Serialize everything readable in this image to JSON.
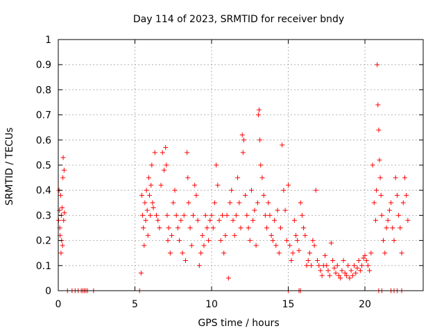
{
  "chart_data": {
    "type": "scatter",
    "title": "Day 114 of 2023, SRMTID for receiver bndy",
    "xlabel": "GPS time / hours",
    "ylabel": "SRMTID / TECUs",
    "xlim": [
      0,
      23.8
    ],
    "ylim": [
      0,
      1
    ],
    "grid": true,
    "marker": "+",
    "color": "#ff0000",
    "x_ticks": [
      0,
      5,
      10,
      15,
      20
    ],
    "x_tick_labels": [
      "0",
      "5",
      "10",
      "15",
      "20"
    ],
    "y_ticks": [
      0,
      0.1,
      0.2,
      0.3,
      0.4,
      0.5,
      0.6,
      0.7,
      0.8,
      0.9,
      1
    ],
    "y_tick_labels": [
      "0",
      "0.1",
      "0.2",
      "0.3",
      "0.4",
      "0.5",
      "0.6",
      "0.7",
      "0.8",
      "0.9",
      "1"
    ],
    "series": [
      {
        "name": "SRMTID",
        "x": [
          0.02,
          0.05,
          0.08,
          0.1,
          0.12,
          0.15,
          0.18,
          0.2,
          0.22,
          0.25,
          0.28,
          0.3,
          0.32,
          0.35,
          0.38,
          0.4,
          0.6,
          0.9,
          1.1,
          1.3,
          1.5,
          1.6,
          1.7,
          1.8,
          1.9,
          2.3,
          5.3,
          5.4,
          5.45,
          5.5,
          5.55,
          5.6,
          5.65,
          5.7,
          5.75,
          5.8,
          5.85,
          5.9,
          5.95,
          6.0,
          6.05,
          6.1,
          6.15,
          6.2,
          6.3,
          6.4,
          6.5,
          6.6,
          6.7,
          6.8,
          6.9,
          7.0,
          7.05,
          7.1,
          7.15,
          7.2,
          7.3,
          7.4,
          7.5,
          7.6,
          7.7,
          7.8,
          7.9,
          8.0,
          8.1,
          8.2,
          8.3,
          8.4,
          8.45,
          8.5,
          8.6,
          8.7,
          8.8,
          8.9,
          9.0,
          9.1,
          9.2,
          9.3,
          9.4,
          9.5,
          9.6,
          9.7,
          9.8,
          9.9,
          10.0,
          10.1,
          10.2,
          10.3,
          10.4,
          10.5,
          10.6,
          10.7,
          10.8,
          10.9,
          11.0,
          11.1,
          11.2,
          11.3,
          11.4,
          11.5,
          11.6,
          11.7,
          11.8,
          11.9,
          12.0,
          12.05,
          12.1,
          12.2,
          12.3,
          12.4,
          12.5,
          12.6,
          12.7,
          12.8,
          12.9,
          13.0,
          13.05,
          13.1,
          13.15,
          13.2,
          13.3,
          13.4,
          13.5,
          13.6,
          13.7,
          13.8,
          13.9,
          14.0,
          14.1,
          14.2,
          14.3,
          14.4,
          14.5,
          14.6,
          14.7,
          14.8,
          14.9,
          15.0,
          15.1,
          15.2,
          15.3,
          15.4,
          15.5,
          15.6,
          15.7,
          15.8,
          15.9,
          16.0,
          16.1,
          16.2,
          16.3,
          16.4,
          16.5,
          16.6,
          16.7,
          16.8,
          16.9,
          17.0,
          17.1,
          17.2,
          17.3,
          17.4,
          17.5,
          17.6,
          17.7,
          17.8,
          17.9,
          18.0,
          18.1,
          18.2,
          18.3,
          18.4,
          18.5,
          18.6,
          18.7,
          18.8,
          18.9,
          19.0,
          19.1,
          19.2,
          19.3,
          19.4,
          19.5,
          19.6,
          19.7,
          19.8,
          19.9,
          20.0,
          20.1,
          20.2,
          20.3,
          20.4,
          20.5,
          20.6,
          20.7,
          20.75,
          20.8,
          20.85,
          20.9,
          20.95,
          21.0,
          21.05,
          21.1,
          21.2,
          21.3,
          21.4,
          21.5,
          21.6,
          21.7,
          21.8,
          21.9,
          22.0,
          22.1,
          22.2,
          22.3,
          22.4,
          22.5,
          22.6,
          22.7,
          22.8,
          15.0,
          15.7,
          15.8,
          20.9,
          21.1,
          21.7,
          21.9,
          22.1,
          22.4
        ],
        "values": [
          0.28,
          0.4,
          0.32,
          0.25,
          0.22,
          0.38,
          0.15,
          0.3,
          0.2,
          0.33,
          0.18,
          0.45,
          0.53,
          0.28,
          0.48,
          0.31,
          0.0,
          0.0,
          0.0,
          0.0,
          0.0,
          0.0,
          0.0,
          0.0,
          0.0,
          0.0,
          0.0,
          0.07,
          0.38,
          0.3,
          0.25,
          0.18,
          0.35,
          0.28,
          0.4,
          0.32,
          0.22,
          0.45,
          0.38,
          0.3,
          0.42,
          0.5,
          0.35,
          0.33,
          0.55,
          0.3,
          0.28,
          0.25,
          0.42,
          0.55,
          0.48,
          0.57,
          0.5,
          0.3,
          0.2,
          0.25,
          0.15,
          0.22,
          0.35,
          0.4,
          0.3,
          0.25,
          0.2,
          0.28,
          0.15,
          0.3,
          0.12,
          0.55,
          0.45,
          0.35,
          0.25,
          0.18,
          0.3,
          0.42,
          0.38,
          0.28,
          0.1,
          0.15,
          0.22,
          0.18,
          0.3,
          0.25,
          0.2,
          0.28,
          0.3,
          0.25,
          0.35,
          0.5,
          0.42,
          0.28,
          0.2,
          0.3,
          0.15,
          0.22,
          0.3,
          0.05,
          0.35,
          0.4,
          0.28,
          0.22,
          0.3,
          0.45,
          0.35,
          0.25,
          0.62,
          0.55,
          0.6,
          0.38,
          0.3,
          0.25,
          0.2,
          0.4,
          0.28,
          0.32,
          0.18,
          0.35,
          0.7,
          0.72,
          0.6,
          0.5,
          0.45,
          0.38,
          0.3,
          0.25,
          0.35,
          0.3,
          0.22,
          0.2,
          0.28,
          0.18,
          0.32,
          0.15,
          0.25,
          0.58,
          0.4,
          0.32,
          0.2,
          0.42,
          0.18,
          0.12,
          0.15,
          0.28,
          0.22,
          0.2,
          0.16,
          0.35,
          0.3,
          0.25,
          0.22,
          0.1,
          0.12,
          0.15,
          0.1,
          0.2,
          0.18,
          0.4,
          0.12,
          0.1,
          0.08,
          0.06,
          0.1,
          0.14,
          0.1,
          0.08,
          0.06,
          0.19,
          0.12,
          0.09,
          0.07,
          0.1,
          0.06,
          0.05,
          0.08,
          0.12,
          0.07,
          0.06,
          0.1,
          0.05,
          0.08,
          0.06,
          0.1,
          0.07,
          0.09,
          0.12,
          0.08,
          0.1,
          0.13,
          0.14,
          0.12,
          0.1,
          0.08,
          0.15,
          0.5,
          0.35,
          0.28,
          0.4,
          0.9,
          0.74,
          0.64,
          0.52,
          0.45,
          0.38,
          0.3,
          0.2,
          0.15,
          0.25,
          0.28,
          0.32,
          0.35,
          0.25,
          0.2,
          0.45,
          0.38,
          0.3,
          0.25,
          0.15,
          0.35,
          0.45,
          0.38,
          0.28,
          0.0,
          0.0,
          0.0,
          0.0,
          0.0,
          0.0,
          0.0,
          0.0,
          0.0
        ]
      }
    ]
  }
}
